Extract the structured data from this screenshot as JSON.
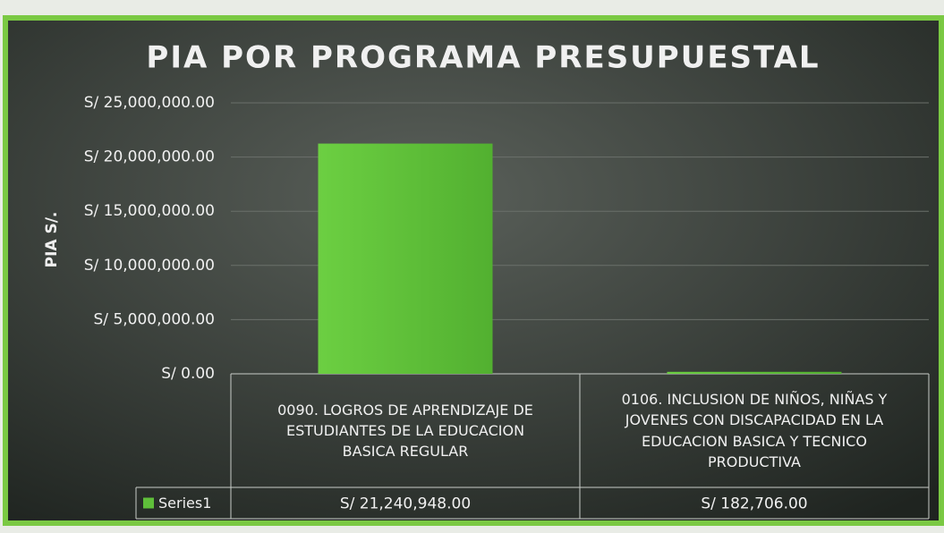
{
  "chart_data": {
    "type": "bar",
    "title": "PIA POR PROGRAMA PRESUPUESTAL",
    "y_label": "PIA S/.",
    "categories": [
      "0090. LOGROS DE APRENDIZAJE DE ESTUDIANTES DE LA EDUCACION BASICA REGULAR",
      "0106. INCLUSION DE NIÑOS, NIÑAS Y JOVENES CON DISCAPACIDAD EN LA EDUCACION BASICA Y TECNICO PRODUCTIVA"
    ],
    "series": [
      {
        "name": "Series1",
        "color": "#5fbf3a",
        "values": [
          21240948,
          182706
        ],
        "value_labels": [
          "S/ 21,240,948.00",
          "S/ 182,706.00"
        ]
      }
    ],
    "ylim": [
      0,
      25000000
    ],
    "yticks": [
      {
        "value": 0,
        "label": "S/ 0.00"
      },
      {
        "value": 5000000,
        "label": "S/ 5,000,000.00"
      },
      {
        "value": 10000000,
        "label": "S/ 10,000,000.00"
      },
      {
        "value": 15000000,
        "label": "S/ 15,000,000.00"
      },
      {
        "value": 20000000,
        "label": "S/ 20,000,000.00"
      },
      {
        "value": 25000000,
        "label": "S/ 25,000,000.00"
      }
    ],
    "grid": true
  }
}
